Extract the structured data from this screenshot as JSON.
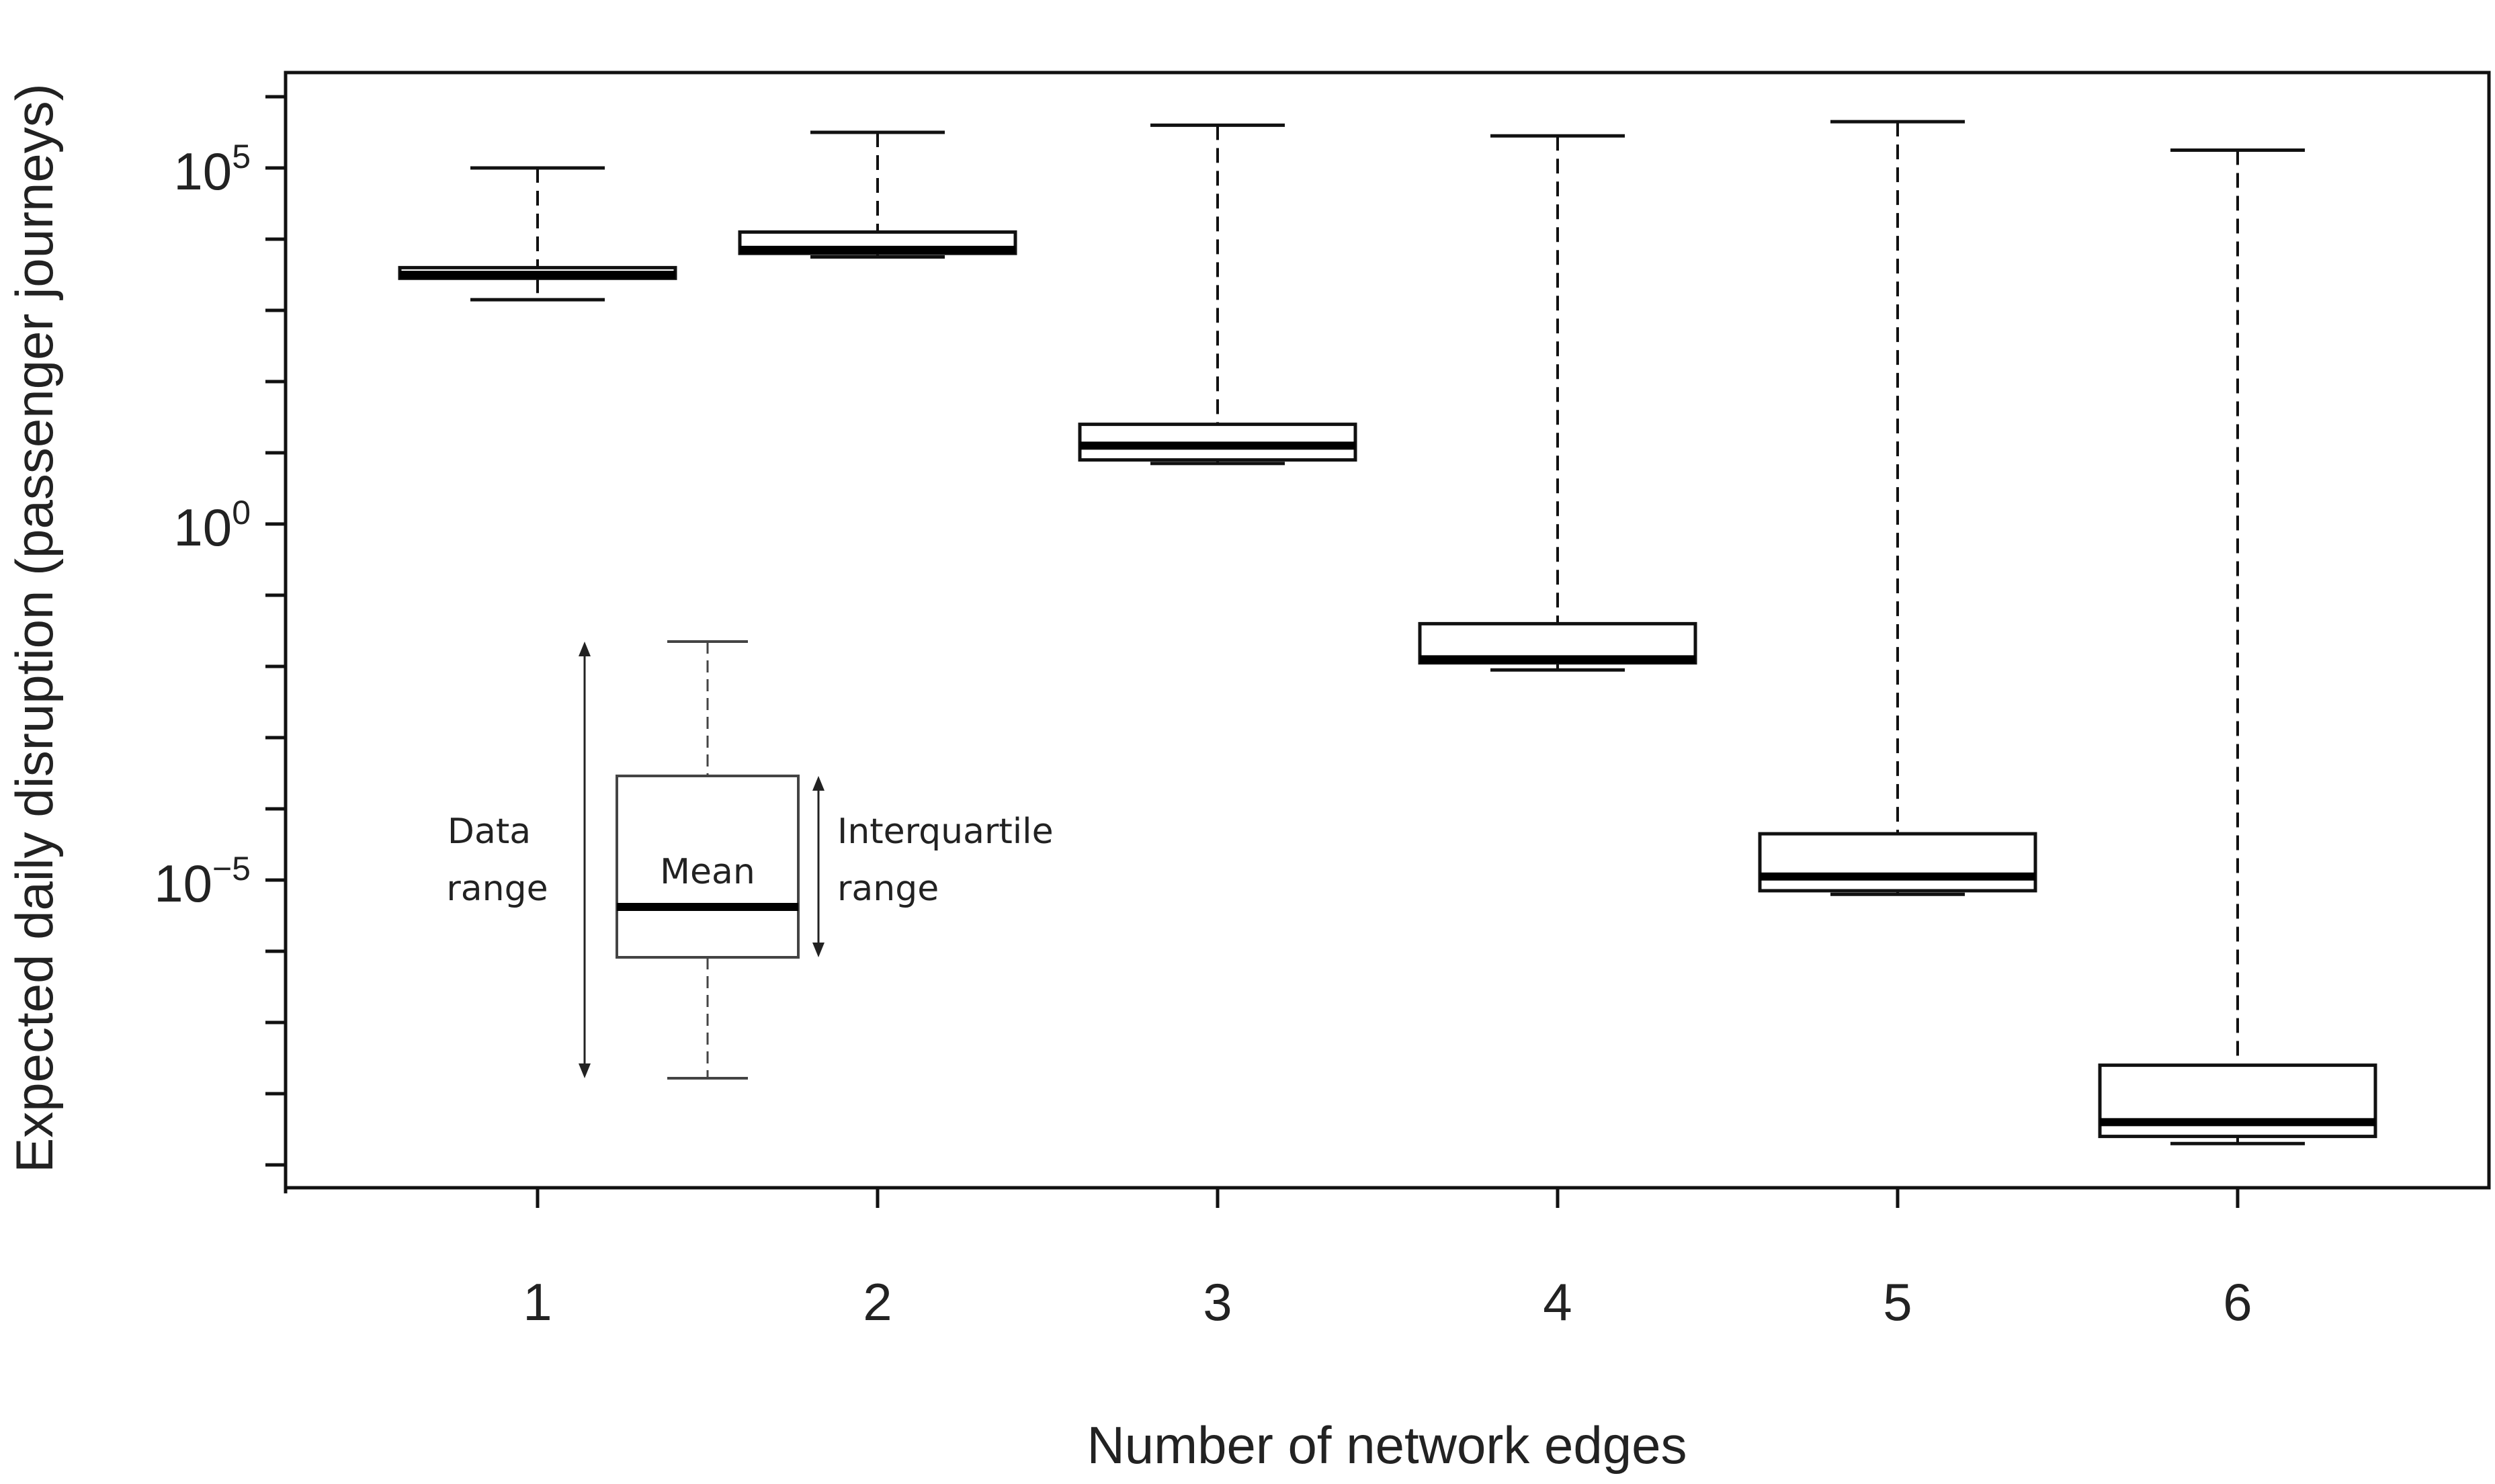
{
  "chart_data": {
    "type": "box",
    "xlabel": "Number of network edges",
    "ylabel": "Expected daily disruption (passenger journeys)",
    "yscale": "log10",
    "ylim_log10": [
      -9.5,
      6.3
    ],
    "categories": [
      "1",
      "2",
      "3",
      "4",
      "5",
      "6"
    ],
    "y_ticks": [
      {
        "log10": 5,
        "base": "10",
        "exp": "5"
      },
      {
        "log10": 0,
        "base": "10",
        "exp": "0"
      },
      {
        "log10": -5,
        "base": "10",
        "exp": "−5"
      }
    ],
    "boxes": [
      {
        "category": "1",
        "min_log10": 3.15,
        "q1_log10": 3.45,
        "mean_log10": 3.5,
        "q3_log10": 3.6,
        "max_log10": 5.0
      },
      {
        "category": "2",
        "min_log10": 3.75,
        "q1_log10": 3.8,
        "mean_log10": 3.85,
        "q3_log10": 4.1,
        "max_log10": 5.5
      },
      {
        "category": "3",
        "min_log10": 0.85,
        "q1_log10": 0.9,
        "mean_log10": 1.1,
        "q3_log10": 1.4,
        "max_log10": 5.6
      },
      {
        "category": "4",
        "min_log10": -2.05,
        "q1_log10": -1.95,
        "mean_log10": -1.9,
        "q3_log10": -1.4,
        "max_log10": 5.45
      },
      {
        "category": "5",
        "min_log10": -5.2,
        "q1_log10": -5.15,
        "mean_log10": -4.95,
        "q3_log10": -4.35,
        "max_log10": 5.65
      },
      {
        "category": "6",
        "min_log10": -8.7,
        "q1_log10": -8.6,
        "mean_log10": -8.4,
        "q3_log10": -7.6,
        "max_log10": 5.25
      }
    ],
    "legend": {
      "data_range": [
        "Data",
        "range"
      ],
      "mean": "Mean",
      "iqr": [
        "Interquartile",
        "range"
      ]
    }
  }
}
